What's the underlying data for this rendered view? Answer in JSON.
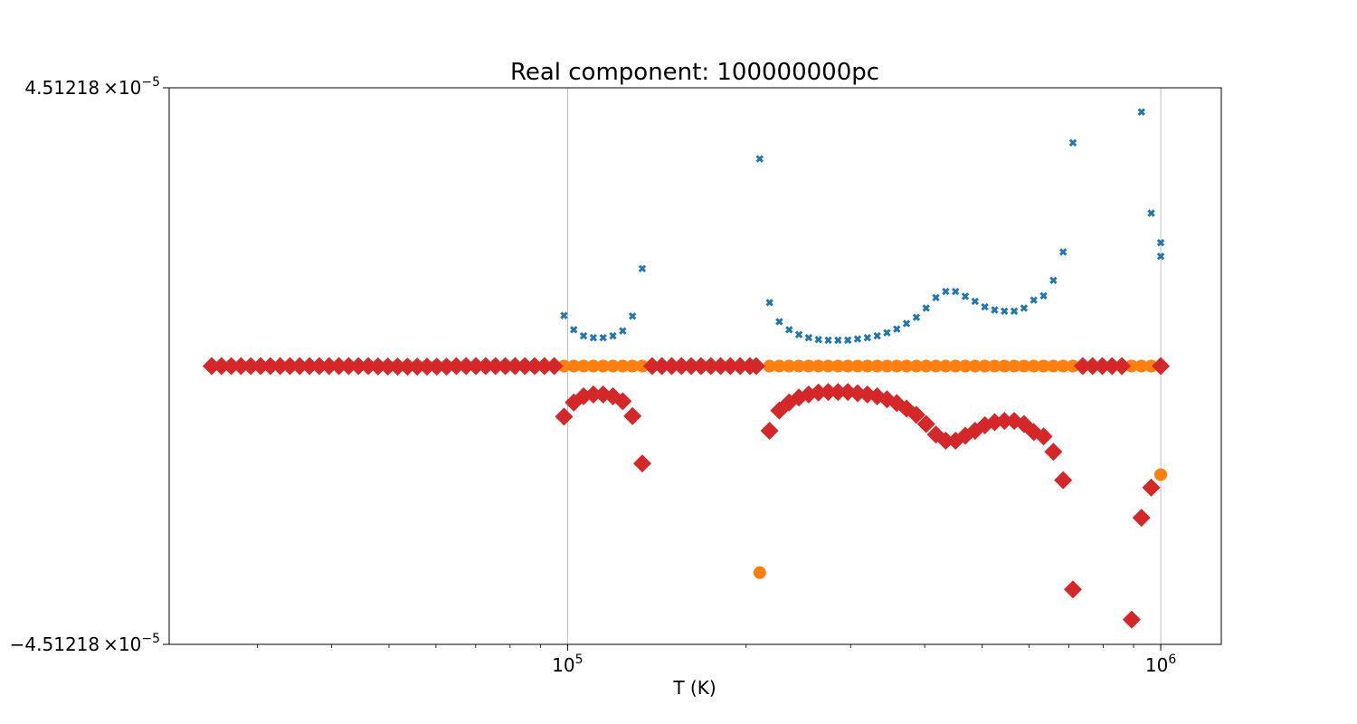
{
  "chart_data": {
    "type": "scatter",
    "title": "Real component: 100000000pc",
    "xlabel": "T (K)",
    "ylabel": "",
    "xscale": "log",
    "xlim": [
      21300,
      1265000
    ],
    "ylim": [
      -4.51218e-05,
      4.51218e-05
    ],
    "grid": "vertical",
    "x_ticks": [
      {
        "value": 100000,
        "mantissa": "10",
        "exponent": "5"
      },
      {
        "value": 1000000,
        "mantissa": "10",
        "exponent": "6"
      }
    ],
    "y_ticks": [
      {
        "value": 4.51218e-05,
        "mantissa": "4.51218",
        "times": "×10",
        "exponent": "−5"
      },
      {
        "value": -4.51218e-05,
        "mantissa": "−4.51218",
        "times": "×10",
        "exponent": "−5"
      }
    ],
    "x_grid": [
      25000,
      50000,
      100000,
      200000,
      300000,
      400000,
      500000,
      1000000
    ],
    "series": [
      {
        "color": "#1f77b4",
        "marker": "x",
        "points": [
          [
            25118.86,
            0
          ],
          [
            26091.53,
            0
          ],
          [
            27101.86,
            0
          ],
          [
            28151.32,
            0
          ],
          [
            29241.43,
            0
          ],
          [
            30373.76,
            0
          ],
          [
            31549.93,
            0
          ],
          [
            32771.6,
            0
          ],
          [
            34040.61,
            0
          ],
          [
            35358.76,
            0
          ],
          [
            36727.94,
            0
          ],
          [
            38150.17,
            0
          ],
          [
            39627.47,
            0
          ],
          [
            41161.98,
            0
          ],
          [
            42755.91,
            0
          ],
          [
            44411.56,
            0
          ],
          [
            46131.3,
            0
          ],
          [
            47917.64,
            5e-08
          ],
          [
            49773.15,
            7e-08
          ],
          [
            51700.51,
            9e-08
          ],
          [
            53702.4,
            9e-08
          ],
          [
            55781.9,
            9e-08
          ],
          [
            57941.9,
            1e-07
          ],
          [
            60185.54,
            1e-07
          ],
          [
            62516.07,
            1e-07
          ],
          [
            64936.87,
            0
          ],
          [
            67451.43,
            0
          ],
          [
            70063.34,
            0
          ],
          [
            72776.4,
            0
          ],
          [
            75594.5,
            0
          ],
          [
            78521.71,
            0
          ],
          [
            81562.27,
            0
          ],
          [
            84720.59,
            0
          ],
          [
            88001.23,
            0
          ],
          [
            91408.91,
            0
          ],
          [
            94948.55,
            0
          ],
          [
            98625.26,
            8.2e-06
          ],
          [
            102444.4,
            5.9e-06
          ],
          [
            106411.3,
            4.9e-06
          ],
          [
            110531.8,
            4.6e-06
          ],
          [
            114811.9,
            4.6e-06
          ],
          [
            119257.8,
            4.9e-06
          ],
          [
            123875.8,
            5.7e-06
          ],
          [
            128672.6,
            8.1e-06
          ],
          [
            133655.1,
            1.58e-05
          ],
          [
            138830.7,
            0
          ],
          [
            144206.6,
            0
          ],
          [
            149790.7,
            0
          ],
          [
            155591.1,
            0
          ],
          [
            161616.2,
            0
          ],
          [
            167874.5,
            0
          ],
          [
            174375.1,
            0
          ],
          [
            181127.5,
            0
          ],
          [
            188141.4,
            0
          ],
          [
            195426.8,
            0
          ],
          [
            202994.2,
            0
          ],
          [
            210854.9,
            3.36e-05
          ],
          [
            219019.9,
            1.03e-05
          ],
          [
            227501,
            7.2e-06
          ],
          [
            236310.6,
            5.9e-06
          ],
          [
            245461.2,
            5.1e-06
          ],
          [
            254966.2,
            4.6e-06
          ],
          [
            264839.2,
            4.3e-06
          ],
          [
            275094.6,
            4.2e-06
          ],
          [
            285747.1,
            4.2e-06
          ],
          [
            296812.1,
            4.2e-06
          ],
          [
            308305.7,
            4.4e-06
          ],
          [
            320244.2,
            4.6e-06
          ],
          [
            332645,
            4.9e-06
          ],
          [
            345526,
            5.4e-06
          ],
          [
            358905.9,
            6e-06
          ],
          [
            372804,
            6.9e-06
          ],
          [
            387240.3,
            7.9e-06
          ],
          [
            402235.6,
            9.4e-06
          ],
          [
            417811.4,
            1.11e-05
          ],
          [
            433990.4,
            1.21e-05
          ],
          [
            450795.8,
            1.21e-05
          ],
          [
            468252,
            1.13e-05
          ],
          [
            486384.2,
            1.05e-05
          ],
          [
            505218.6,
            9.6e-06
          ],
          [
            524782.3,
            9.1e-06
          ],
          [
            545103.5,
            8.9e-06
          ],
          [
            566211.6,
            8.9e-06
          ],
          [
            588137.1,
            9.4e-06
          ],
          [
            610911.6,
            1.07e-05
          ],
          [
            634568,
            1.14e-05
          ],
          [
            659140.5,
            1.39e-05
          ],
          [
            684664.6,
            1.85e-05
          ],
          [
            711177,
            3.62e-05
          ],
          [
            738716.1,
            0
          ],
          [
            767321.8,
            0
          ],
          [
            797035.2,
            0
          ],
          [
            827899.2,
            0
          ],
          [
            859958.5,
            0
          ],
          [
            893259.2,
            0
          ],
          [
            927849.3,
            4.12e-05
          ],
          [
            963778.9,
            2.48e-05
          ],
          [
            1000000,
            2e-05
          ],
          [
            1000001,
            1.78e-05
          ]
        ]
      },
      {
        "color": "#ff7f0e",
        "marker": "o",
        "points": [
          [
            25118.86,
            0
          ],
          [
            26091.53,
            0
          ],
          [
            27101.86,
            0
          ],
          [
            28151.32,
            0
          ],
          [
            29241.43,
            0
          ],
          [
            30373.76,
            0
          ],
          [
            31549.93,
            0
          ],
          [
            32771.6,
            0
          ],
          [
            34040.61,
            0
          ],
          [
            35358.76,
            0
          ],
          [
            36727.94,
            0
          ],
          [
            38150.17,
            0
          ],
          [
            39627.47,
            0
          ],
          [
            41161.98,
            0
          ],
          [
            42755.91,
            0
          ],
          [
            44411.56,
            0
          ],
          [
            46131.3,
            0
          ],
          [
            47917.64,
            0
          ],
          [
            49773.15,
            0
          ],
          [
            51700.51,
            0
          ],
          [
            53702.4,
            0
          ],
          [
            55781.9,
            0
          ],
          [
            57941.9,
            0
          ],
          [
            60185.54,
            0
          ],
          [
            62516.07,
            0
          ],
          [
            64936.87,
            0
          ],
          [
            67451.43,
            0
          ],
          [
            70063.34,
            0
          ],
          [
            72776.4,
            0
          ],
          [
            75594.5,
            0
          ],
          [
            78521.71,
            0
          ],
          [
            81562.27,
            0
          ],
          [
            84720.59,
            0
          ],
          [
            88001.23,
            0
          ],
          [
            91408.91,
            0
          ],
          [
            94948.55,
            0
          ],
          [
            98625.26,
            0
          ],
          [
            102444.4,
            0
          ],
          [
            106411.3,
            0
          ],
          [
            110531.8,
            0
          ],
          [
            114811.9,
            0
          ],
          [
            119257.8,
            0
          ],
          [
            123875.8,
            0
          ],
          [
            128672.6,
            0
          ],
          [
            133655.1,
            0
          ],
          [
            138830.7,
            0
          ],
          [
            144206.6,
            0
          ],
          [
            149790.7,
            0
          ],
          [
            155591.1,
            0
          ],
          [
            161616.2,
            0
          ],
          [
            167874.5,
            0
          ],
          [
            174375.1,
            0
          ],
          [
            181127.5,
            0
          ],
          [
            188141.4,
            0
          ],
          [
            195426.8,
            0
          ],
          [
            202994.2,
            0
          ],
          [
            210854.9,
            -3.35e-05
          ],
          [
            219019.9,
            0
          ],
          [
            227501,
            0
          ],
          [
            236310.6,
            0
          ],
          [
            245461.2,
            0
          ],
          [
            254966.2,
            0
          ],
          [
            264839.2,
            0
          ],
          [
            275094.6,
            0
          ],
          [
            285747.1,
            0
          ],
          [
            296812.1,
            0
          ],
          [
            308305.7,
            0
          ],
          [
            320244.2,
            0
          ],
          [
            332645,
            0
          ],
          [
            345526,
            0
          ],
          [
            358905.9,
            0
          ],
          [
            372804,
            0
          ],
          [
            387240.3,
            0
          ],
          [
            402235.6,
            0
          ],
          [
            417811.4,
            0
          ],
          [
            433990.4,
            0
          ],
          [
            450795.8,
            0
          ],
          [
            468252,
            0
          ],
          [
            486384.2,
            0
          ],
          [
            505218.6,
            0
          ],
          [
            524782.3,
            0
          ],
          [
            545103.5,
            0
          ],
          [
            566211.6,
            0
          ],
          [
            588137.1,
            0
          ],
          [
            610911.6,
            0
          ],
          [
            634568,
            0
          ],
          [
            659140.5,
            0
          ],
          [
            684664.6,
            0
          ],
          [
            711177,
            0
          ],
          [
            738716.1,
            0
          ],
          [
            767321.8,
            0
          ],
          [
            797035.2,
            0
          ],
          [
            827899.2,
            0
          ],
          [
            859958.5,
            0
          ],
          [
            893259.2,
            0
          ],
          [
            927849.3,
            0
          ],
          [
            963778.9,
            0
          ],
          [
            1000000,
            -1.76e-05
          ]
        ]
      },
      {
        "color": "#d62728",
        "marker": "D",
        "points": [
          [
            25118.86,
            0
          ],
          [
            26091.53,
            0
          ],
          [
            27101.86,
            0
          ],
          [
            28151.32,
            0
          ],
          [
            29241.43,
            0
          ],
          [
            30373.76,
            0
          ],
          [
            31549.93,
            0
          ],
          [
            32771.6,
            0
          ],
          [
            34040.61,
            0
          ],
          [
            35358.76,
            0
          ],
          [
            36727.94,
            0
          ],
          [
            38150.17,
            0
          ],
          [
            39627.47,
            0
          ],
          [
            41161.98,
            0
          ],
          [
            42755.91,
            0
          ],
          [
            44411.56,
            0
          ],
          [
            46131.3,
            0
          ],
          [
            47917.64,
            -5e-08
          ],
          [
            49773.15,
            -7e-08
          ],
          [
            51700.51,
            -9e-08
          ],
          [
            53702.4,
            -9e-08
          ],
          [
            55781.9,
            -9e-08
          ],
          [
            57941.9,
            -1e-07
          ],
          [
            60185.54,
            -1e-07
          ],
          [
            62516.07,
            -1e-07
          ],
          [
            64936.87,
            0
          ],
          [
            67451.43,
            0
          ],
          [
            70063.34,
            0
          ],
          [
            72776.4,
            0
          ],
          [
            75594.5,
            0
          ],
          [
            78521.71,
            0
          ],
          [
            81562.27,
            0
          ],
          [
            84720.59,
            0
          ],
          [
            88001.23,
            0
          ],
          [
            91408.91,
            0
          ],
          [
            94948.55,
            0
          ],
          [
            98625.26,
            -8.2e-06
          ],
          [
            102444.4,
            -5.9e-06
          ],
          [
            106411.3,
            -4.9e-06
          ],
          [
            110531.8,
            -4.6e-06
          ],
          [
            114811.9,
            -4.6e-06
          ],
          [
            119257.8,
            -4.9e-06
          ],
          [
            123875.8,
            -5.7e-06
          ],
          [
            128672.6,
            -8.1e-06
          ],
          [
            133655.1,
            -1.58e-05
          ],
          [
            138830.7,
            0
          ],
          [
            144206.6,
            0
          ],
          [
            149790.7,
            0
          ],
          [
            155591.1,
            0
          ],
          [
            161616.2,
            0
          ],
          [
            167874.5,
            0
          ],
          [
            174375.1,
            0
          ],
          [
            181127.5,
            0
          ],
          [
            188141.4,
            0
          ],
          [
            195426.8,
            0
          ],
          [
            202994.2,
            0
          ],
          [
            208000,
            0
          ],
          [
            219019.9,
            -1.05e-05
          ],
          [
            227501,
            -7.2e-06
          ],
          [
            236310.6,
            -5.9e-06
          ],
          [
            245461.2,
            -5.1e-06
          ],
          [
            254966.2,
            -4.6e-06
          ],
          [
            264839.2,
            -4.3e-06
          ],
          [
            275094.6,
            -4.2e-06
          ],
          [
            285747.1,
            -4.2e-06
          ],
          [
            296812.1,
            -4.2e-06
          ],
          [
            308305.7,
            -4.4e-06
          ],
          [
            320244.2,
            -4.6e-06
          ],
          [
            332645,
            -4.9e-06
          ],
          [
            345526,
            -5.4e-06
          ],
          [
            358905.9,
            -6e-06
          ],
          [
            372804,
            -6.9e-06
          ],
          [
            387240.3,
            -7.9e-06
          ],
          [
            402235.6,
            -9.4e-06
          ],
          [
            417811.4,
            -1.11e-05
          ],
          [
            433990.4,
            -1.21e-05
          ],
          [
            450795.8,
            -1.21e-05
          ],
          [
            468252,
            -1.13e-05
          ],
          [
            486384.2,
            -1.05e-05
          ],
          [
            505218.6,
            -9.6e-06
          ],
          [
            524782.3,
            -9.1e-06
          ],
          [
            545103.5,
            -8.9e-06
          ],
          [
            566211.6,
            -8.9e-06
          ],
          [
            588137.1,
            -9.4e-06
          ],
          [
            610911.6,
            -1.07e-05
          ],
          [
            634568,
            -1.14e-05
          ],
          [
            659140.5,
            -1.39e-05
          ],
          [
            684664.6,
            -1.85e-05
          ],
          [
            711177,
            -3.62e-05
          ],
          [
            738716.1,
            0
          ],
          [
            767321.8,
            0
          ],
          [
            797035.2,
            0
          ],
          [
            827899.2,
            0
          ],
          [
            859958.5,
            0
          ],
          [
            893259.2,
            -4.11e-05
          ],
          [
            927849.3,
            -2.46e-05
          ],
          [
            963778.9,
            -1.97e-05
          ],
          [
            1000000,
            0
          ]
        ]
      }
    ]
  }
}
